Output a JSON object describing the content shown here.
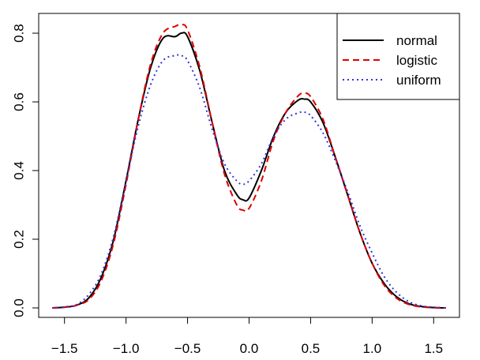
{
  "chart_data": {
    "type": "line",
    "title": "",
    "xlabel": "",
    "ylabel": "",
    "xlim": [
      -1.62,
      1.62
    ],
    "ylim": [
      0,
      0.83
    ],
    "x_ticks": [
      -1.5,
      -1.0,
      -0.5,
      0.0,
      0.5,
      1.0,
      1.5
    ],
    "x_tick_labels": [
      "−1.5",
      "−1.0",
      "−0.5",
      "0.0",
      "0.5",
      "1.0",
      "1.5"
    ],
    "y_ticks": [
      0.0,
      0.2,
      0.4,
      0.6,
      0.8
    ],
    "y_tick_labels": [
      "0.0",
      "0.2",
      "0.4",
      "0.6",
      "0.8"
    ],
    "grid": false,
    "legend_position": "top-right",
    "x": [
      -1.6,
      -1.5,
      -1.4,
      -1.3,
      -1.2,
      -1.1,
      -1.0,
      -0.9,
      -0.8,
      -0.7,
      -0.6,
      -0.55,
      -0.5,
      -0.4,
      -0.3,
      -0.2,
      -0.1,
      -0.05,
      0.0,
      0.1,
      0.2,
      0.3,
      0.4,
      0.45,
      0.5,
      0.6,
      0.7,
      0.8,
      0.9,
      1.0,
      1.1,
      1.2,
      1.3,
      1.4,
      1.5,
      1.6
    ],
    "series": [
      {
        "name": "normal",
        "color": "#000000",
        "dash": "solid",
        "values": [
          0.0,
          0.002,
          0.008,
          0.03,
          0.09,
          0.2,
          0.37,
          0.55,
          0.7,
          0.785,
          0.79,
          0.8,
          0.79,
          0.69,
          0.54,
          0.4,
          0.33,
          0.315,
          0.32,
          0.4,
          0.5,
          0.57,
          0.605,
          0.608,
          0.6,
          0.54,
          0.44,
          0.33,
          0.22,
          0.13,
          0.07,
          0.032,
          0.012,
          0.004,
          0.001,
          0.0
        ]
      },
      {
        "name": "logistic",
        "color": "#dd0000",
        "dash": "dashed",
        "values": [
          0.0,
          0.002,
          0.008,
          0.025,
          0.08,
          0.19,
          0.36,
          0.55,
          0.71,
          0.8,
          0.82,
          0.825,
          0.81,
          0.7,
          0.54,
          0.39,
          0.3,
          0.285,
          0.29,
          0.37,
          0.49,
          0.57,
          0.618,
          0.625,
          0.615,
          0.55,
          0.44,
          0.33,
          0.22,
          0.13,
          0.065,
          0.028,
          0.01,
          0.003,
          0.001,
          0.0
        ]
      },
      {
        "name": "uniform",
        "color": "#3333dd",
        "dash": "dotted",
        "values": [
          0.0,
          0.003,
          0.01,
          0.04,
          0.1,
          0.21,
          0.37,
          0.53,
          0.65,
          0.72,
          0.735,
          0.735,
          0.72,
          0.64,
          0.52,
          0.42,
          0.37,
          0.36,
          0.37,
          0.42,
          0.5,
          0.55,
          0.568,
          0.57,
          0.56,
          0.51,
          0.43,
          0.34,
          0.24,
          0.16,
          0.09,
          0.045,
          0.018,
          0.006,
          0.002,
          0.0
        ]
      }
    ]
  }
}
